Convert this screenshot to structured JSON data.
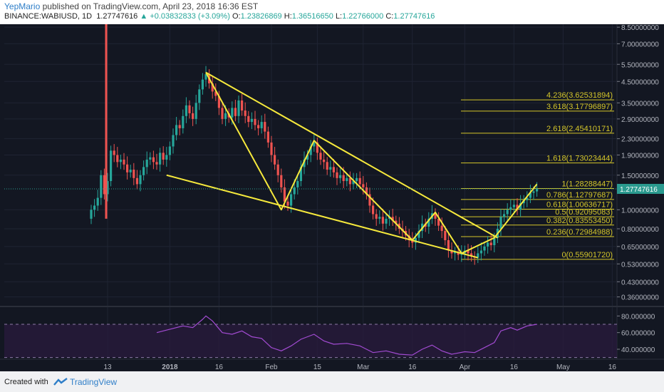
{
  "header": {
    "author": "YepMario",
    "published": "published on TradingView.com, April 23, 2018 16:36 EST",
    "symbol": "BINANCE:WABIUSD, 1D",
    "last": "1.27747616",
    "change": "+0.03832833 (+3.09%)",
    "o_label": "O:",
    "o": "1.23826869",
    "h_label": "H:",
    "h": "1.36516650",
    "l_label": "L:",
    "l": "1.22766000",
    "c_label": "C:",
    "c": "1.27747616"
  },
  "footer": {
    "created_with": "Created with",
    "brand": "TradingView"
  },
  "colors": {
    "background": "#131722",
    "up": "#26a69a",
    "down": "#ef5350",
    "pattern": "#f6e93c",
    "fib": "#d4c62a",
    "rsi": "#a24bd2",
    "price_tag": "#2a9a8f"
  },
  "chart_data": [
    {
      "type": "candlestick",
      "symbol": "BINANCE:WABIUSD",
      "interval": "1D",
      "y_scale": "log",
      "ylim": [
        0.33,
        8.8
      ],
      "y_ticks": [
        "8.50000000",
        "7.00000000",
        "5.50000000",
        "4.50000000",
        "3.50000000",
        "2.90000000",
        "2.30000000",
        "1.90000000",
        "1.50000000",
        "1.00000000",
        "0.80000000",
        "0.65000000",
        "0.53000000",
        "0.43000000",
        "0.36000000"
      ],
      "y_tick_values": [
        8.5,
        7.0,
        5.5,
        4.5,
        3.5,
        2.9,
        2.3,
        1.9,
        1.5,
        1.0,
        0.8,
        0.65,
        0.53,
        0.43,
        0.36
      ],
      "x_ticks": [
        "13",
        "2018",
        "16",
        "Feb",
        "15",
        "Mar",
        "16",
        "Apr",
        "16",
        "May",
        "16"
      ],
      "x_tick_dates": [
        "2017-12-13",
        "2018-01-01",
        "2018-01-16",
        "2018-02-01",
        "2018-02-15",
        "2018-03-01",
        "2018-03-16",
        "2018-04-01",
        "2018-04-16",
        "2018-05-01",
        "2018-05-16"
      ],
      "last_price_label": "1.27747616",
      "last_price": 1.27747616,
      "closes": [
        [
          "2017-12-08",
          1.0
        ],
        [
          "2017-12-09",
          1.05
        ],
        [
          "2017-12-10",
          1.15
        ],
        [
          "2017-12-11",
          1.5
        ],
        [
          "2017-12-12",
          1.2
        ],
        [
          "2017-12-13",
          1.4
        ],
        [
          "2017-12-14",
          2.0
        ],
        [
          "2017-12-15",
          1.9
        ],
        [
          "2017-12-16",
          1.75
        ],
        [
          "2017-12-17",
          1.8
        ],
        [
          "2017-12-18",
          1.7
        ],
        [
          "2017-12-19",
          1.55
        ],
        [
          "2017-12-20",
          1.6
        ],
        [
          "2017-12-21",
          1.45
        ],
        [
          "2017-12-22",
          1.35
        ],
        [
          "2017-12-23",
          1.5
        ],
        [
          "2017-12-24",
          1.65
        ],
        [
          "2017-12-25",
          1.8
        ],
        [
          "2017-12-26",
          1.85
        ],
        [
          "2017-12-27",
          1.75
        ],
        [
          "2017-12-28",
          1.7
        ],
        [
          "2017-12-29",
          1.95
        ],
        [
          "2017-12-30",
          1.8
        ],
        [
          "2017-12-31",
          1.9
        ],
        [
          "2018-01-01",
          2.1
        ],
        [
          "2018-01-02",
          2.4
        ],
        [
          "2018-01-03",
          2.7
        ],
        [
          "2018-01-04",
          2.6
        ],
        [
          "2018-01-05",
          3.0
        ],
        [
          "2018-01-06",
          3.4
        ],
        [
          "2018-01-07",
          3.1
        ],
        [
          "2018-01-08",
          2.9
        ],
        [
          "2018-01-09",
          3.5
        ],
        [
          "2018-01-10",
          4.1
        ],
        [
          "2018-01-11",
          4.6
        ],
        [
          "2018-01-12",
          4.9
        ],
        [
          "2018-01-13",
          4.4
        ],
        [
          "2018-01-14",
          4.0
        ],
        [
          "2018-01-15",
          3.8
        ],
        [
          "2018-01-16",
          3.3
        ],
        [
          "2018-01-17",
          2.9
        ],
        [
          "2018-01-18",
          3.1
        ],
        [
          "2018-01-19",
          2.95
        ],
        [
          "2018-01-20",
          3.3
        ],
        [
          "2018-01-21",
          3.0
        ],
        [
          "2018-01-22",
          3.6
        ],
        [
          "2018-01-23",
          3.2
        ],
        [
          "2018-01-24",
          3.0
        ],
        [
          "2018-01-25",
          2.8
        ],
        [
          "2018-01-26",
          2.9
        ],
        [
          "2018-01-27",
          2.7
        ],
        [
          "2018-01-28",
          2.6
        ],
        [
          "2018-01-29",
          2.8
        ],
        [
          "2018-01-30",
          2.5
        ],
        [
          "2018-01-31",
          2.2
        ],
        [
          "2018-02-01",
          1.9
        ],
        [
          "2018-02-02",
          1.7
        ],
        [
          "2018-02-03",
          1.5
        ],
        [
          "2018-02-04",
          1.3
        ],
        [
          "2018-02-05",
          1.1
        ],
        [
          "2018-02-06",
          1.05
        ],
        [
          "2018-02-07",
          1.2
        ],
        [
          "2018-02-08",
          1.3
        ],
        [
          "2018-02-09",
          1.4
        ],
        [
          "2018-02-10",
          1.65
        ],
        [
          "2018-02-11",
          1.8
        ],
        [
          "2018-02-12",
          1.9
        ],
        [
          "2018-02-13",
          2.1
        ],
        [
          "2018-02-14",
          2.2
        ],
        [
          "2018-02-15",
          1.95
        ],
        [
          "2018-02-16",
          1.8
        ],
        [
          "2018-02-17",
          1.75
        ],
        [
          "2018-02-18",
          1.6
        ],
        [
          "2018-02-19",
          1.65
        ],
        [
          "2018-02-20",
          1.55
        ],
        [
          "2018-02-21",
          1.45
        ],
        [
          "2018-02-22",
          1.5
        ],
        [
          "2018-02-23",
          1.4
        ],
        [
          "2018-02-24",
          1.45
        ],
        [
          "2018-02-25",
          1.35
        ],
        [
          "2018-02-26",
          1.4
        ],
        [
          "2018-02-27",
          1.45
        ],
        [
          "2018-02-28",
          1.35
        ],
        [
          "2018-03-01",
          1.3
        ],
        [
          "2018-03-02",
          1.2
        ],
        [
          "2018-03-03",
          1.05
        ],
        [
          "2018-03-04",
          0.95
        ],
        [
          "2018-03-05",
          0.9
        ],
        [
          "2018-03-06",
          0.92
        ],
        [
          "2018-03-07",
          0.85
        ],
        [
          "2018-03-08",
          0.9
        ],
        [
          "2018-03-09",
          0.92
        ],
        [
          "2018-03-10",
          0.88
        ],
        [
          "2018-03-11",
          0.85
        ],
        [
          "2018-03-12",
          0.8
        ],
        [
          "2018-03-13",
          0.78
        ],
        [
          "2018-03-14",
          0.74
        ],
        [
          "2018-03-15",
          0.7
        ],
        [
          "2018-03-16",
          0.68
        ],
        [
          "2018-03-17",
          0.72
        ],
        [
          "2018-03-18",
          0.78
        ],
        [
          "2018-03-19",
          0.85
        ],
        [
          "2018-03-20",
          0.82
        ],
        [
          "2018-03-21",
          0.9
        ],
        [
          "2018-03-22",
          0.96
        ],
        [
          "2018-03-23",
          0.9
        ],
        [
          "2018-03-24",
          0.83
        ],
        [
          "2018-03-25",
          0.78
        ],
        [
          "2018-03-26",
          0.7
        ],
        [
          "2018-03-27",
          0.62
        ],
        [
          "2018-03-28",
          0.6
        ],
        [
          "2018-03-29",
          0.61
        ],
        [
          "2018-03-30",
          0.59
        ],
        [
          "2018-03-31",
          0.6
        ],
        [
          "2018-04-01",
          0.62
        ],
        [
          "2018-04-02",
          0.6
        ],
        [
          "2018-04-03",
          0.58
        ],
        [
          "2018-04-04",
          0.57
        ],
        [
          "2018-04-05",
          0.6
        ],
        [
          "2018-04-06",
          0.62
        ],
        [
          "2018-04-07",
          0.65
        ],
        [
          "2018-04-08",
          0.68
        ],
        [
          "2018-04-09",
          0.66
        ],
        [
          "2018-04-10",
          0.72
        ],
        [
          "2018-04-11",
          0.8
        ],
        [
          "2018-04-12",
          0.92
        ],
        [
          "2018-04-13",
          0.95
        ],
        [
          "2018-04-14",
          1.0
        ],
        [
          "2018-04-15",
          1.03
        ],
        [
          "2018-04-16",
          1.06
        ],
        [
          "2018-04-17",
          1.0
        ],
        [
          "2018-04-18",
          1.08
        ],
        [
          "2018-04-19",
          1.12
        ],
        [
          "2018-04-20",
          1.15
        ],
        [
          "2018-04-21",
          1.22
        ],
        [
          "2018-04-22",
          1.24
        ],
        [
          "2018-04-23",
          1.28
        ]
      ],
      "fibonacci_levels": [
        {
          "label": "4.236(3.62531894)",
          "price": 3.62531894
        },
        {
          "label": "3.618(3.17796897)",
          "price": 3.17796897
        },
        {
          "label": "2.618(2.45410171)",
          "price": 2.45410171
        },
        {
          "label": "1.618(1.73023444)",
          "price": 1.73023444
        },
        {
          "label": "1(1.28288447)",
          "price": 1.28288447
        },
        {
          "label": "0.786(1.12797687)",
          "price": 1.12797687
        },
        {
          "label": "0.618(1.00636717)",
          "price": 1.00636717
        },
        {
          "label": "0.5(0.92095083)",
          "price": 0.92095083
        },
        {
          "label": "0.382(0.83553450)",
          "price": 0.8355345
        },
        {
          "label": "0.236(0.72984988)",
          "price": 0.72984988
        },
        {
          "label": "0(0.55901720)",
          "price": 0.5590172
        }
      ],
      "trendlines": [
        {
          "name": "upper",
          "points": [
            [
              "2018-01-12",
              5.0
            ],
            [
              "2018-04-11",
              0.72
            ]
          ]
        },
        {
          "name": "lower",
          "points": [
            [
              "2017-12-31",
              1.5
            ],
            [
              "2018-04-05",
              0.57
            ]
          ]
        },
        {
          "name": "zigzag",
          "points": [
            [
              "2018-01-12",
              5.0
            ],
            [
              "2018-02-04",
              1.0
            ],
            [
              "2018-02-14",
              2.25
            ],
            [
              "2018-03-16",
              0.7
            ],
            [
              "2018-03-23",
              0.97
            ],
            [
              "2018-03-31",
              0.6
            ],
            [
              "2018-04-10",
              0.72
            ],
            [
              "2018-04-23",
              1.35
            ]
          ]
        }
      ]
    },
    {
      "type": "line",
      "name": "RSI",
      "ylim": [
        28,
        88
      ],
      "y_ticks": [
        "80.000000",
        "60.000000",
        "40.000000"
      ],
      "y_tick_values": [
        80,
        60,
        40
      ],
      "bands": [
        70,
        30
      ],
      "points": [
        [
          "2017-12-28",
          60
        ],
        [
          "2017-12-30",
          62
        ],
        [
          "2018-01-02",
          65
        ],
        [
          "2018-01-05",
          68
        ],
        [
          "2018-01-08",
          66
        ],
        [
          "2018-01-11",
          76
        ],
        [
          "2018-01-12",
          80
        ],
        [
          "2018-01-14",
          74
        ],
        [
          "2018-01-17",
          60
        ],
        [
          "2018-01-20",
          58
        ],
        [
          "2018-01-23",
          62
        ],
        [
          "2018-01-26",
          55
        ],
        [
          "2018-01-29",
          53
        ],
        [
          "2018-02-01",
          42
        ],
        [
          "2018-02-04",
          38
        ],
        [
          "2018-02-07",
          44
        ],
        [
          "2018-02-10",
          52
        ],
        [
          "2018-02-14",
          58
        ],
        [
          "2018-02-17",
          50
        ],
        [
          "2018-02-20",
          46
        ],
        [
          "2018-02-24",
          47
        ],
        [
          "2018-02-28",
          44
        ],
        [
          "2018-03-04",
          36
        ],
        [
          "2018-03-08",
          38
        ],
        [
          "2018-03-12",
          34
        ],
        [
          "2018-03-16",
          33
        ],
        [
          "2018-03-19",
          40
        ],
        [
          "2018-03-22",
          45
        ],
        [
          "2018-03-25",
          38
        ],
        [
          "2018-03-28",
          34
        ],
        [
          "2018-04-01",
          37
        ],
        [
          "2018-04-04",
          36
        ],
        [
          "2018-04-07",
          42
        ],
        [
          "2018-04-10",
          48
        ],
        [
          "2018-04-12",
          62
        ],
        [
          "2018-04-15",
          66
        ],
        [
          "2018-04-17",
          63
        ],
        [
          "2018-04-20",
          68
        ],
        [
          "2018-04-23",
          70
        ]
      ]
    }
  ]
}
